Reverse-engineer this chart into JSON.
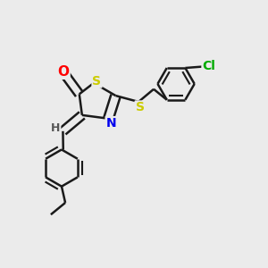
{
  "background_color": "#ebebeb",
  "bond_color": "#1a1a1a",
  "atom_colors": {
    "O": "#ff0000",
    "S": "#cccc00",
    "N": "#0000ee",
    "Cl": "#00aa00",
    "C": "#1a1a1a",
    "H": "#555555"
  },
  "bond_width": 1.8,
  "font_size": 10,
  "figsize": [
    3.0,
    3.0
  ],
  "dpi": 100
}
